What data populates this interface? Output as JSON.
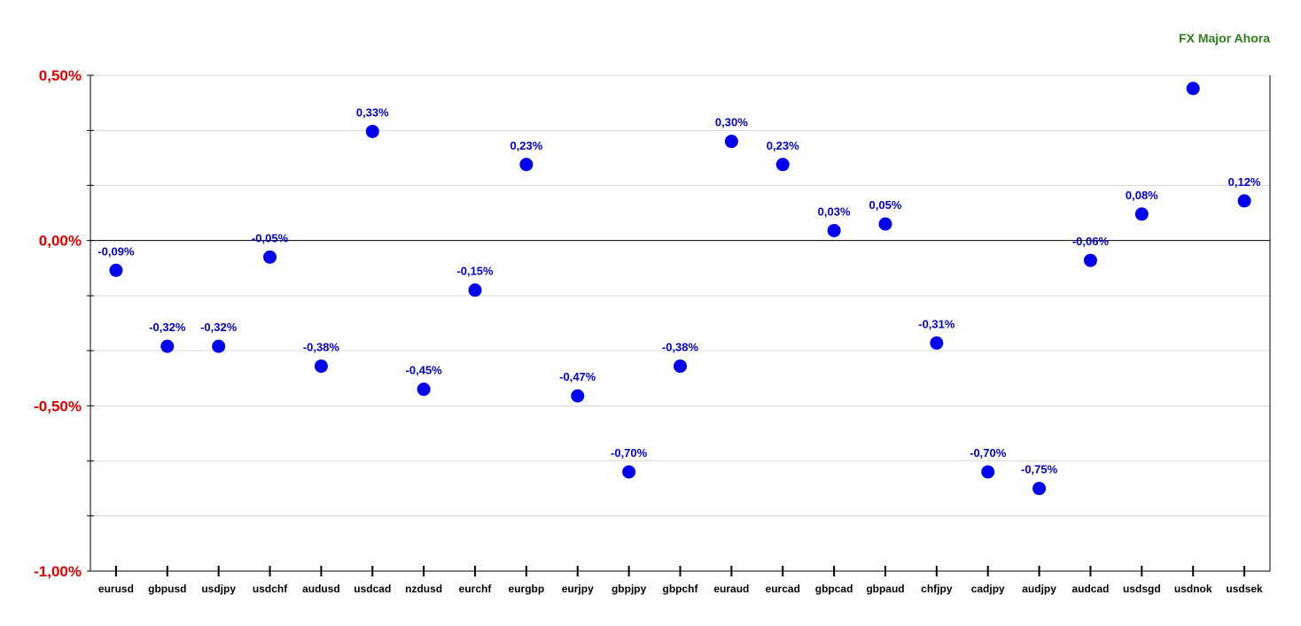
{
  "chart_data": {
    "type": "scatter",
    "title": "FX Major Ahora",
    "categories": [
      "eurusd",
      "gbpusd",
      "usdjpy",
      "usdchf",
      "audusd",
      "usdcad",
      "nzdusd",
      "eurchf",
      "eurgbp",
      "eurjpy",
      "gbpjpy",
      "gbpchf",
      "euraud",
      "eurcad",
      "gbpcad",
      "gbpaud",
      "chfjpy",
      "cadjpy",
      "audjpy",
      "audcad",
      "usdsgd",
      "usdnok",
      "usdsek"
    ],
    "values": [
      -0.09,
      -0.32,
      -0.32,
      -0.05,
      -0.38,
      0.33,
      -0.45,
      -0.15,
      0.23,
      -0.47,
      -0.7,
      -0.38,
      0.3,
      0.23,
      0.03,
      0.05,
      -0.31,
      -0.7,
      -0.75,
      -0.06,
      0.08,
      0.46,
      0.12
    ],
    "data_labels": [
      "-0,09%",
      "-0,32%",
      "-0,32%",
      "-0,05%",
      "-0,38%",
      "0,33%",
      "-0,45%",
      "-0,15%",
      "0,23%",
      "-0,47%",
      "-0,70%",
      "-0,38%",
      "0,30%",
      "0,23%",
      "0,03%",
      "0,05%",
      "-0,31%",
      "-0,70%",
      "-0,75%",
      "-0,06%",
      "0,08%",
      "",
      "0,12%"
    ],
    "ylim": [
      -1.0,
      0.5
    ],
    "y_ticks": [
      {
        "value": 0.5,
        "label": "0,50%"
      },
      {
        "value": 0.0,
        "label": "0,00%"
      },
      {
        "value": -0.5,
        "label": "-0,50%"
      },
      {
        "value": -1.0,
        "label": "-1,00%"
      }
    ],
    "y_minor_ticks": [
      0.5,
      0.333,
      0.167,
      0.0,
      -0.167,
      -0.333,
      -0.5,
      -0.667,
      -0.833,
      -1.0
    ],
    "grid": true,
    "colors": {
      "title": "#2e7d1e",
      "y_tick_labels": "#e00000",
      "points": "#0000ee",
      "data_labels": "#0000cc",
      "x_tick_labels": "#000000",
      "grid": "#d8d8d8",
      "axis": "#000000"
    }
  }
}
